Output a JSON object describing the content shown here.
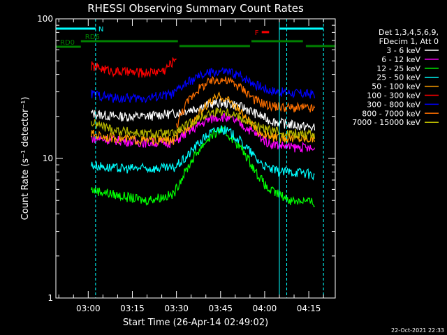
{
  "chart_data": {
    "type": "line",
    "title": "RHESSI Observing Summary Count Rates",
    "xlabel": "Start Time (26-Apr-14 02:49:02)",
    "ylabel": "Count Rate (s⁻¹ detector⁻¹)",
    "y_scale": "log",
    "ylim": [
      1,
      100
    ],
    "y_ticks": [
      {
        "v": 1,
        "label": "1"
      },
      {
        "v": 10,
        "label": "10"
      },
      {
        "v": 100,
        "label": "100"
      }
    ],
    "xlim_minutes": [
      0,
      95
    ],
    "x_ticks": [
      {
        "t": 11,
        "label": "03:00"
      },
      {
        "t": 26,
        "label": "03:15"
      },
      {
        "t": 41,
        "label": "03:30"
      },
      {
        "t": 56,
        "label": "03:45"
      },
      {
        "t": 71,
        "label": "04:00"
      },
      {
        "t": 86,
        "label": "04:15"
      }
    ],
    "legend": {
      "placement": "right",
      "header": [
        "Det 1,3,4,5,6,9,",
        "FDecim 1, Att 0"
      ]
    },
    "series": [
      {
        "name": "3 - 6 keV",
        "color": "#ffffff",
        "values": [
          [
            12,
            21
          ],
          [
            20,
            20
          ],
          [
            30,
            20
          ],
          [
            40,
            21
          ],
          [
            44,
            22
          ],
          [
            48,
            23
          ],
          [
            52,
            24.5
          ],
          [
            56,
            25
          ],
          [
            60,
            24.5
          ],
          [
            64,
            23
          ],
          [
            68,
            21
          ],
          [
            72,
            19
          ],
          [
            76,
            18
          ],
          [
            80,
            17.5
          ],
          [
            84,
            17
          ],
          [
            88,
            16.5
          ]
        ]
      },
      {
        "name": "6 - 12 keV",
        "color": "#ff00ff",
        "values": [
          [
            12,
            14
          ],
          [
            20,
            13.5
          ],
          [
            30,
            13
          ],
          [
            40,
            13
          ],
          [
            44,
            15
          ],
          [
            48,
            17
          ],
          [
            52,
            19
          ],
          [
            56,
            20
          ],
          [
            60,
            19
          ],
          [
            64,
            17
          ],
          [
            68,
            15
          ],
          [
            72,
            13
          ],
          [
            76,
            12.5
          ],
          [
            80,
            12
          ],
          [
            84,
            12
          ],
          [
            88,
            11.5
          ]
        ]
      },
      {
        "name": "12 - 25 keV",
        "color": "#00ff00",
        "values": [
          [
            12,
            6
          ],
          [
            20,
            5.5
          ],
          [
            30,
            5
          ],
          [
            40,
            5.5
          ],
          [
            44,
            8
          ],
          [
            48,
            11
          ],
          [
            52,
            14
          ],
          [
            56,
            16
          ],
          [
            60,
            14
          ],
          [
            64,
            11
          ],
          [
            68,
            8
          ],
          [
            72,
            6
          ],
          [
            76,
            5.5
          ],
          [
            80,
            5
          ],
          [
            84,
            5
          ],
          [
            88,
            4.8
          ]
        ]
      },
      {
        "name": "25 - 50 keV",
        "color": "#00ffff",
        "values": [
          [
            12,
            9
          ],
          [
            20,
            8.5
          ],
          [
            30,
            8.5
          ],
          [
            40,
            8.5
          ],
          [
            44,
            10
          ],
          [
            48,
            12.5
          ],
          [
            52,
            15
          ],
          [
            56,
            16.5
          ],
          [
            60,
            15
          ],
          [
            64,
            12.5
          ],
          [
            68,
            10
          ],
          [
            72,
            8.5
          ],
          [
            76,
            8
          ],
          [
            80,
            8
          ],
          [
            84,
            8
          ],
          [
            88,
            7.5
          ]
        ]
      },
      {
        "name": "50 - 100 keV",
        "color": "#ffa000",
        "values": [
          [
            12,
            15
          ],
          [
            20,
            14
          ],
          [
            30,
            13.5
          ],
          [
            40,
            13.5
          ],
          [
            44,
            16
          ],
          [
            48,
            20
          ],
          [
            52,
            25
          ],
          [
            56,
            28
          ],
          [
            60,
            25
          ],
          [
            64,
            20
          ],
          [
            68,
            16
          ],
          [
            72,
            14.5
          ],
          [
            76,
            14
          ],
          [
            80,
            14
          ],
          [
            84,
            14
          ],
          [
            88,
            14
          ]
        ]
      },
      {
        "name": "100 - 300 keV",
        "color": "#ff0000",
        "values": [
          [
            12,
            46
          ],
          [
            20,
            42
          ],
          [
            30,
            41
          ],
          [
            37,
            43
          ],
          [
            40,
            50
          ],
          [
            41,
            55
          ]
        ]
      },
      {
        "name": "300 - 800 keV",
        "color": "#0000ff",
        "values": [
          [
            12,
            29
          ],
          [
            20,
            27
          ],
          [
            30,
            27
          ],
          [
            40,
            29
          ],
          [
            44,
            34
          ],
          [
            48,
            38
          ],
          [
            52,
            41
          ],
          [
            56,
            42
          ],
          [
            60,
            41
          ],
          [
            64,
            38
          ],
          [
            68,
            34
          ],
          [
            72,
            31
          ],
          [
            76,
            30
          ],
          [
            80,
            29.5
          ],
          [
            84,
            29
          ],
          [
            88,
            29
          ]
        ]
      },
      {
        "name": "800 - 7000 keV",
        "color": "#ff7000",
        "values": [
          [
            41,
            17
          ],
          [
            44,
            24
          ],
          [
            48,
            31
          ],
          [
            52,
            35
          ],
          [
            56,
            37
          ],
          [
            60,
            35
          ],
          [
            64,
            31
          ],
          [
            68,
            26
          ],
          [
            72,
            24
          ],
          [
            76,
            23.5
          ],
          [
            80,
            23
          ],
          [
            84,
            23
          ],
          [
            88,
            22.5
          ]
        ]
      },
      {
        "name": "7000 - 15000 keV",
        "color": "#b8b800",
        "values": [
          [
            12,
            18
          ],
          [
            20,
            16
          ],
          [
            30,
            15
          ],
          [
            40,
            15
          ],
          [
            44,
            17
          ],
          [
            48,
            19
          ],
          [
            52,
            21
          ],
          [
            56,
            22
          ],
          [
            60,
            21
          ],
          [
            64,
            19
          ],
          [
            68,
            17
          ],
          [
            72,
            16
          ],
          [
            76,
            15.5
          ],
          [
            80,
            15
          ],
          [
            84,
            15
          ],
          [
            88,
            15
          ]
        ]
      }
    ],
    "bars": [
      {
        "label": "RD0",
        "color": "#008000",
        "from": 0,
        "to": 8.5,
        "y": 67
      },
      {
        "label": "RD6",
        "color": "#008000",
        "from": 8.5,
        "to": 41.5,
        "y": 59
      },
      {
        "label": "",
        "color": "#008000",
        "from": 42,
        "to": 66,
        "y": 66
      },
      {
        "label": "",
        "color": "#008000",
        "from": 66.5,
        "to": 84,
        "y": 59
      },
      {
        "label": "",
        "color": "#008000",
        "from": 85,
        "to": 95,
        "y": 66
      },
      {
        "label": "N",
        "color": "#00ffff",
        "from": 0,
        "to": 13.5,
        "y": 41
      },
      {
        "label": "F",
        "color": "#ff0000",
        "from": 70,
        "to": 72.5,
        "y": 46
      },
      {
        "label": "",
        "color": "#00ffff",
        "from": 76,
        "to": 91,
        "y": 41
      }
    ],
    "vlines": [
      {
        "t": 13.5,
        "color": "#00ffff",
        "style": "dashed"
      },
      {
        "t": 76,
        "color": "#00ffff",
        "style": "solid"
      },
      {
        "t": 78.5,
        "color": "#00ffff",
        "style": "dashed"
      },
      {
        "t": 91,
        "color": "#00ffff",
        "style": "dashed"
      }
    ],
    "annotation": "22-Oct-2021 22:33"
  }
}
